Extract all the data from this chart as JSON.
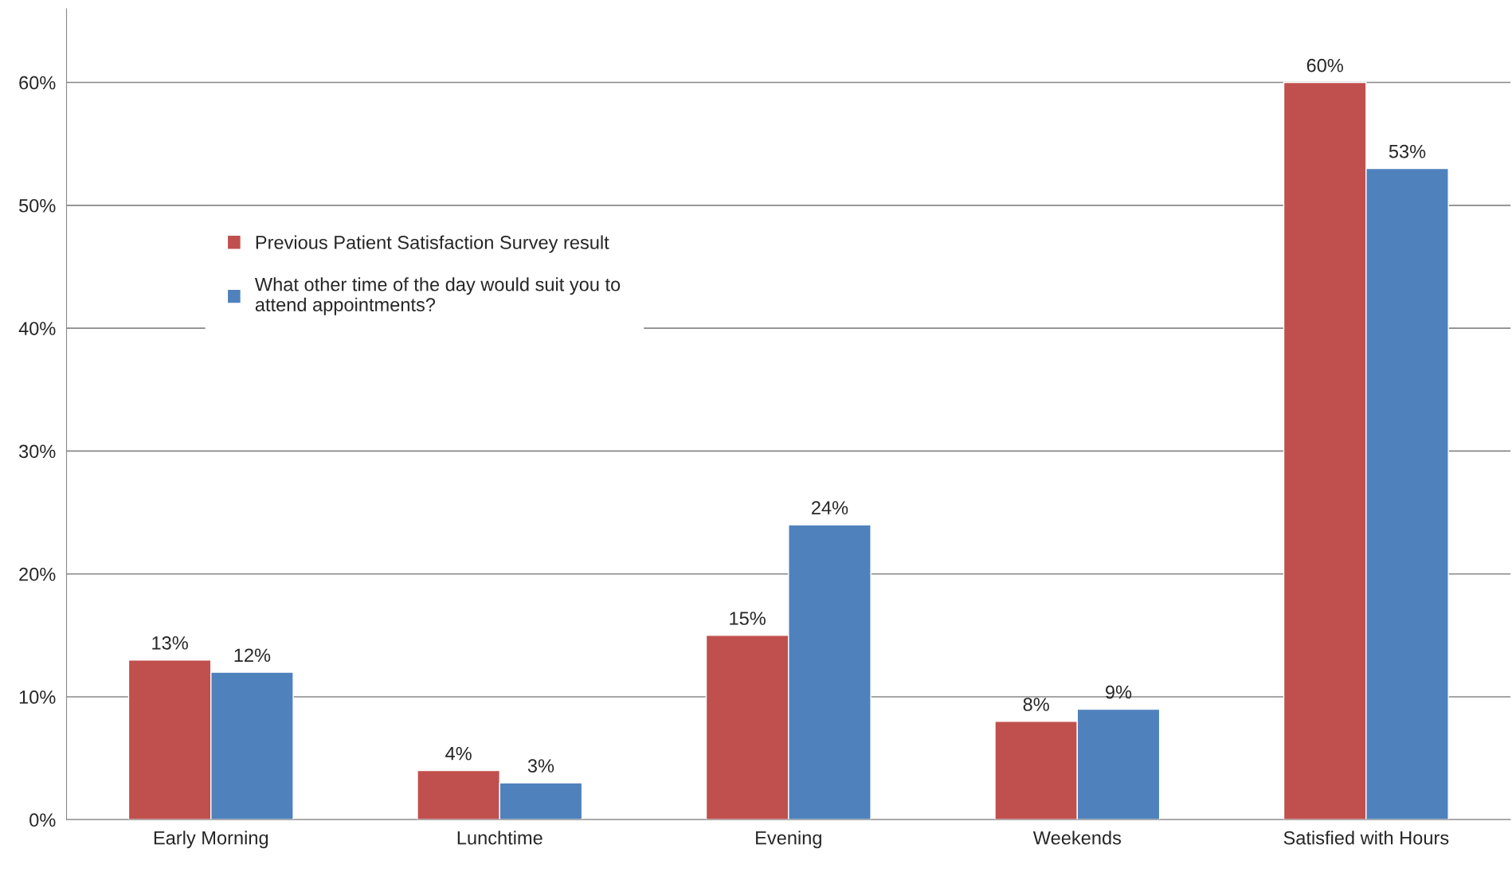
{
  "chart_data": {
    "type": "bar",
    "categories": [
      "Early Morning",
      "Lunchtime",
      "Evening",
      "Weekends",
      "Satisfied with Hours"
    ],
    "series": [
      {
        "name": "Previous Patient Satisfaction Survey result",
        "color": "#c0504d",
        "values": [
          13,
          4,
          15,
          8,
          60
        ],
        "value_labels": [
          "13%",
          "4%",
          "15%",
          "8%",
          "60%"
        ]
      },
      {
        "name": "What other time of the day would suit you to attend appointments?",
        "color": "#4f81bd",
        "values": [
          12,
          3,
          24,
          9,
          53
        ],
        "value_labels": [
          "12%",
          "3%",
          "24%",
          "9%",
          "53%"
        ]
      }
    ],
    "ylim": [
      0,
      66
    ],
    "yticks": [
      {
        "value": 0,
        "label": "0%"
      },
      {
        "value": 10,
        "label": "10%"
      },
      {
        "value": 20,
        "label": "20%"
      },
      {
        "value": 30,
        "label": "30%"
      },
      {
        "value": 40,
        "label": "40%"
      },
      {
        "value": 50,
        "label": "50%"
      },
      {
        "value": 60,
        "label": "60%"
      }
    ],
    "grid": "y",
    "legend": "top left"
  }
}
